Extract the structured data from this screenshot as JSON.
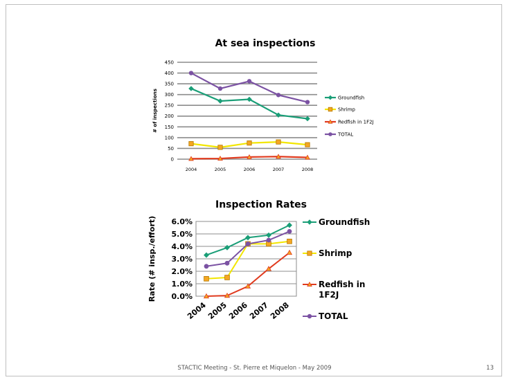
{
  "footer": {
    "text": "STACTIC Meeting - St. Pierre et Miquelon - May 2009",
    "page_number": "13"
  },
  "chart_data": [
    {
      "type": "line",
      "title": "At  sea inspections",
      "ylabel": "# of inspections",
      "xlabel": "",
      "categories": [
        "2004",
        "2005",
        "2006",
        "2007",
        "2008"
      ],
      "ylim": [
        0,
        450
      ],
      "yticks": [
        "0",
        "50",
        "100",
        "150",
        "200",
        "250",
        "300",
        "350",
        "400",
        "450"
      ],
      "grid": true,
      "legend": "right",
      "series": [
        {
          "name": "Groundfish",
          "color": "#1a9e77",
          "marker": "diamond",
          "values": [
            328,
            270,
            278,
            205,
            188
          ]
        },
        {
          "name": "Shrimp",
          "color": "#f2e600",
          "marker": "square",
          "values": [
            72,
            55,
            75,
            80,
            67
          ]
        },
        {
          "name": "Redfish in 1F2J",
          "color": "#e03a1e",
          "marker": "triangle",
          "values": [
            2,
            3,
            10,
            12,
            8
          ]
        },
        {
          "name": "TOTAL",
          "color": "#7b52a3",
          "marker": "circle",
          "values": [
            400,
            328,
            362,
            298,
            265
          ]
        }
      ]
    },
    {
      "type": "line",
      "title": "Inspection Rates",
      "ylabel": "Rate (# insp./effort)",
      "xlabel": "",
      "categories": [
        "2004",
        "2005",
        "2006",
        "2007",
        "2008"
      ],
      "ylim": [
        0,
        6
      ],
      "yticks": [
        "0.0%",
        "1.0%",
        "2.0%",
        "3.0%",
        "4.0%",
        "5.0%",
        "6.0%"
      ],
      "grid": true,
      "legend": "right",
      "series": [
        {
          "name": "Groundfish",
          "color": "#1a9e77",
          "marker": "diamond",
          "values": [
            3.3,
            3.9,
            4.7,
            4.9,
            5.7
          ]
        },
        {
          "name": "Shrimp",
          "color": "#f2e600",
          "marker": "square",
          "values": [
            1.4,
            1.5,
            4.2,
            4.2,
            4.4
          ]
        },
        {
          "name": "Redfish in 1F2J",
          "color": "#e03a1e",
          "marker": "triangle",
          "values": [
            0.0,
            0.05,
            0.8,
            2.2,
            3.5
          ]
        },
        {
          "name": "TOTAL",
          "color": "#7b52a3",
          "marker": "circle",
          "values": [
            2.4,
            2.65,
            4.2,
            4.5,
            5.2
          ]
        }
      ]
    }
  ]
}
